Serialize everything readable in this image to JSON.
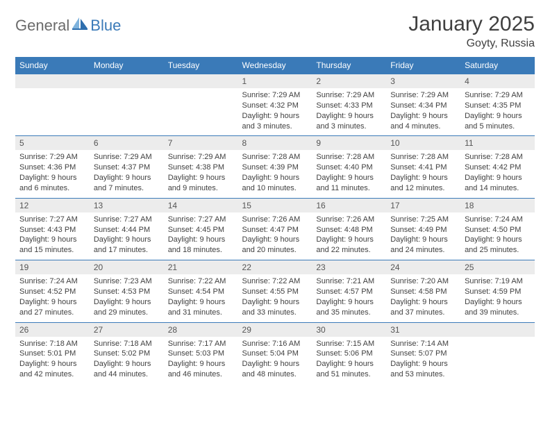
{
  "brand": {
    "word1": "General",
    "word2": "Blue",
    "logo_color_light": "#7fb3dd",
    "logo_color_dark": "#2f6fae"
  },
  "title": "January 2025",
  "location": "Goyty, Russia",
  "colors": {
    "header_bg": "#3a7ab8",
    "header_fg": "#ffffff",
    "daynum_bg": "#ececec",
    "text": "#404040",
    "rule": "#3a7ab8"
  },
  "day_names": [
    "Sunday",
    "Monday",
    "Tuesday",
    "Wednesday",
    "Thursday",
    "Friday",
    "Saturday"
  ],
  "weeks": [
    [
      {
        "n": "",
        "lines": []
      },
      {
        "n": "",
        "lines": []
      },
      {
        "n": "",
        "lines": []
      },
      {
        "n": "1",
        "lines": [
          "Sunrise: 7:29 AM",
          "Sunset: 4:32 PM",
          "Daylight: 9 hours",
          "and 3 minutes."
        ]
      },
      {
        "n": "2",
        "lines": [
          "Sunrise: 7:29 AM",
          "Sunset: 4:33 PM",
          "Daylight: 9 hours",
          "and 3 minutes."
        ]
      },
      {
        "n": "3",
        "lines": [
          "Sunrise: 7:29 AM",
          "Sunset: 4:34 PM",
          "Daylight: 9 hours",
          "and 4 minutes."
        ]
      },
      {
        "n": "4",
        "lines": [
          "Sunrise: 7:29 AM",
          "Sunset: 4:35 PM",
          "Daylight: 9 hours",
          "and 5 minutes."
        ]
      }
    ],
    [
      {
        "n": "5",
        "lines": [
          "Sunrise: 7:29 AM",
          "Sunset: 4:36 PM",
          "Daylight: 9 hours",
          "and 6 minutes."
        ]
      },
      {
        "n": "6",
        "lines": [
          "Sunrise: 7:29 AM",
          "Sunset: 4:37 PM",
          "Daylight: 9 hours",
          "and 7 minutes."
        ]
      },
      {
        "n": "7",
        "lines": [
          "Sunrise: 7:29 AM",
          "Sunset: 4:38 PM",
          "Daylight: 9 hours",
          "and 9 minutes."
        ]
      },
      {
        "n": "8",
        "lines": [
          "Sunrise: 7:28 AM",
          "Sunset: 4:39 PM",
          "Daylight: 9 hours",
          "and 10 minutes."
        ]
      },
      {
        "n": "9",
        "lines": [
          "Sunrise: 7:28 AM",
          "Sunset: 4:40 PM",
          "Daylight: 9 hours",
          "and 11 minutes."
        ]
      },
      {
        "n": "10",
        "lines": [
          "Sunrise: 7:28 AM",
          "Sunset: 4:41 PM",
          "Daylight: 9 hours",
          "and 12 minutes."
        ]
      },
      {
        "n": "11",
        "lines": [
          "Sunrise: 7:28 AM",
          "Sunset: 4:42 PM",
          "Daylight: 9 hours",
          "and 14 minutes."
        ]
      }
    ],
    [
      {
        "n": "12",
        "lines": [
          "Sunrise: 7:27 AM",
          "Sunset: 4:43 PM",
          "Daylight: 9 hours",
          "and 15 minutes."
        ]
      },
      {
        "n": "13",
        "lines": [
          "Sunrise: 7:27 AM",
          "Sunset: 4:44 PM",
          "Daylight: 9 hours",
          "and 17 minutes."
        ]
      },
      {
        "n": "14",
        "lines": [
          "Sunrise: 7:27 AM",
          "Sunset: 4:45 PM",
          "Daylight: 9 hours",
          "and 18 minutes."
        ]
      },
      {
        "n": "15",
        "lines": [
          "Sunrise: 7:26 AM",
          "Sunset: 4:47 PM",
          "Daylight: 9 hours",
          "and 20 minutes."
        ]
      },
      {
        "n": "16",
        "lines": [
          "Sunrise: 7:26 AM",
          "Sunset: 4:48 PM",
          "Daylight: 9 hours",
          "and 22 minutes."
        ]
      },
      {
        "n": "17",
        "lines": [
          "Sunrise: 7:25 AM",
          "Sunset: 4:49 PM",
          "Daylight: 9 hours",
          "and 24 minutes."
        ]
      },
      {
        "n": "18",
        "lines": [
          "Sunrise: 7:24 AM",
          "Sunset: 4:50 PM",
          "Daylight: 9 hours",
          "and 25 minutes."
        ]
      }
    ],
    [
      {
        "n": "19",
        "lines": [
          "Sunrise: 7:24 AM",
          "Sunset: 4:52 PM",
          "Daylight: 9 hours",
          "and 27 minutes."
        ]
      },
      {
        "n": "20",
        "lines": [
          "Sunrise: 7:23 AM",
          "Sunset: 4:53 PM",
          "Daylight: 9 hours",
          "and 29 minutes."
        ]
      },
      {
        "n": "21",
        "lines": [
          "Sunrise: 7:22 AM",
          "Sunset: 4:54 PM",
          "Daylight: 9 hours",
          "and 31 minutes."
        ]
      },
      {
        "n": "22",
        "lines": [
          "Sunrise: 7:22 AM",
          "Sunset: 4:55 PM",
          "Daylight: 9 hours",
          "and 33 minutes."
        ]
      },
      {
        "n": "23",
        "lines": [
          "Sunrise: 7:21 AM",
          "Sunset: 4:57 PM",
          "Daylight: 9 hours",
          "and 35 minutes."
        ]
      },
      {
        "n": "24",
        "lines": [
          "Sunrise: 7:20 AM",
          "Sunset: 4:58 PM",
          "Daylight: 9 hours",
          "and 37 minutes."
        ]
      },
      {
        "n": "25",
        "lines": [
          "Sunrise: 7:19 AM",
          "Sunset: 4:59 PM",
          "Daylight: 9 hours",
          "and 39 minutes."
        ]
      }
    ],
    [
      {
        "n": "26",
        "lines": [
          "Sunrise: 7:18 AM",
          "Sunset: 5:01 PM",
          "Daylight: 9 hours",
          "and 42 minutes."
        ]
      },
      {
        "n": "27",
        "lines": [
          "Sunrise: 7:18 AM",
          "Sunset: 5:02 PM",
          "Daylight: 9 hours",
          "and 44 minutes."
        ]
      },
      {
        "n": "28",
        "lines": [
          "Sunrise: 7:17 AM",
          "Sunset: 5:03 PM",
          "Daylight: 9 hours",
          "and 46 minutes."
        ]
      },
      {
        "n": "29",
        "lines": [
          "Sunrise: 7:16 AM",
          "Sunset: 5:04 PM",
          "Daylight: 9 hours",
          "and 48 minutes."
        ]
      },
      {
        "n": "30",
        "lines": [
          "Sunrise: 7:15 AM",
          "Sunset: 5:06 PM",
          "Daylight: 9 hours",
          "and 51 minutes."
        ]
      },
      {
        "n": "31",
        "lines": [
          "Sunrise: 7:14 AM",
          "Sunset: 5:07 PM",
          "Daylight: 9 hours",
          "and 53 minutes."
        ]
      },
      {
        "n": "",
        "lines": []
      }
    ]
  ]
}
